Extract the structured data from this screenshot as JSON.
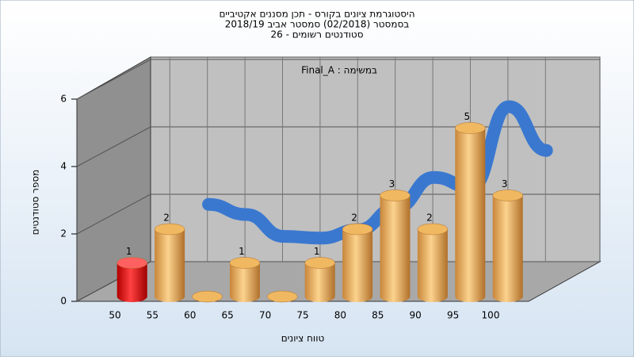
{
  "chart_data": {
    "type": "bar3d",
    "title": "היסטוגרמת ציונים בקורס - תכן מסננים אקטיביים",
    "subtitle": "בסמסטר  (02/2018)  סמסטר אביב 2018/19",
    "subtitle2": "סטודנטים רשומים - 26",
    "annotation": "Final_A : במשימה",
    "y_label": "מספר סטודנטים",
    "x_label": "טווח ציונים",
    "categories": [
      "50",
      "55",
      "60",
      "65",
      "70",
      "75",
      "80",
      "85",
      "90",
      "95",
      "100"
    ],
    "values": [
      1,
      2,
      0,
      1,
      0,
      1,
      2,
      3,
      2,
      5,
      3
    ],
    "colors": [
      "red",
      "orange",
      "orange",
      "orange",
      "orange",
      "orange",
      "orange",
      "orange",
      "orange",
      "orange",
      "orange"
    ],
    "curve": {
      "color": "#3a78d0",
      "values": [
        null,
        1.7,
        1.4,
        0.75,
        0.7,
        0.95,
        1.6,
        2.5,
        2.2,
        4.6,
        3.3
      ]
    },
    "ylim": [
      0,
      6
    ],
    "yticks": [
      0,
      2,
      4,
      6
    ],
    "grid": true
  }
}
